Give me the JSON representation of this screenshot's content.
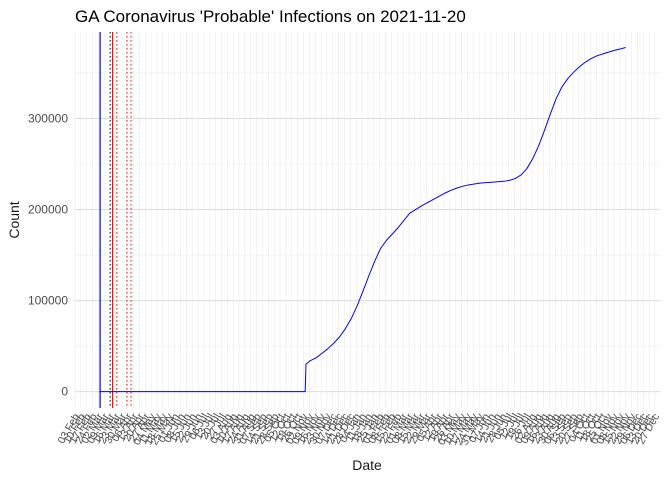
{
  "chart_data": {
    "type": "line",
    "title": "GA Coronavirus 'Probable' Infections on 2021-11-20",
    "xlabel": "Date",
    "ylabel": "Count",
    "x_range": [
      "2020-02-01",
      "2021-12-31"
    ],
    "ylim": [
      -18000,
      395000
    ],
    "y_ticks": [
      0,
      100000,
      200000,
      300000
    ],
    "y_tick_labels": [
      "0",
      "100000",
      "200000",
      "300000"
    ],
    "x_tick_labels": [
      "03 Feb",
      "10 Feb",
      "17 Feb",
      "24 Feb",
      "02 Mar",
      "09 Mar",
      "16 Mar",
      "23 Mar",
      "30 Mar",
      "06 Apr",
      "13 Apr",
      "20 Apr",
      "27 Apr",
      "04 May",
      "11 May",
      "18 May",
      "25 May",
      "01 Jun",
      "08 Jun",
      "15 Jun",
      "22 Jun",
      "29 Jun",
      "06 Jul",
      "13 Jul",
      "20 Jul",
      "27 Jul",
      "03 Aug",
      "10 Aug",
      "17 Aug",
      "24 Aug",
      "31 Aug",
      "07 Sep",
      "14 Sep",
      "21 Sep",
      "28 Sep",
      "05 Oct",
      "12 Oct",
      "19 Oct",
      "26 Oct",
      "02 Nov",
      "09 Nov",
      "16 Nov",
      "23 Nov",
      "30 Nov",
      "07 Dec",
      "14 Dec",
      "21 Dec",
      "28 Dec",
      "04 Jan",
      "11 Jan",
      "18 Jan",
      "25 Jan",
      "01 Feb",
      "08 Feb",
      "15 Feb",
      "22 Feb",
      "01 Mar",
      "08 Mar",
      "15 Mar",
      "22 Mar",
      "29 Mar",
      "05 Apr",
      "12 Apr",
      "19 Apr",
      "26 Apr",
      "03 May",
      "10 May",
      "17 May",
      "24 May",
      "31 May",
      "07 Jun",
      "14 Jun",
      "21 Jun",
      "28 Jun",
      "05 Jul",
      "12 Jul",
      "19 Jul",
      "26 Jul",
      "02 Aug",
      "09 Aug",
      "16 Aug",
      "23 Aug",
      "30 Aug",
      "06 Sep",
      "13 Sep",
      "20 Sep",
      "27 Sep",
      "04 Oct",
      "11 Oct",
      "18 Oct",
      "25 Oct",
      "01 Nov",
      "08 Nov",
      "15 Nov",
      "22 Nov",
      "29 Nov",
      "06 Dec",
      "13 Dec",
      "20 Dec",
      "27 Dec"
    ],
    "grid": true,
    "reference_lines": [
      {
        "x": "2020-03-02",
        "color": "#0000ff",
        "style": "solid"
      },
      {
        "x": "2020-03-14",
        "color": "#000000",
        "style": "dotted"
      },
      {
        "x": "2020-03-17",
        "color": "#ff0000",
        "style": "solid"
      },
      {
        "x": "2020-03-22",
        "color": "#ff0000",
        "style": "dotted"
      },
      {
        "x": "2020-04-03",
        "color": "#ff0000",
        "style": "dotted"
      },
      {
        "x": "2020-04-08",
        "color": "#ff0000",
        "style": "dotted"
      }
    ],
    "series": [
      {
        "color": "#0000ff",
        "points": [
          [
            "2020-03-01",
            0
          ],
          [
            "2020-11-02",
            0
          ],
          [
            "2020-11-03",
            30000
          ],
          [
            "2020-11-08",
            34000
          ],
          [
            "2020-11-15",
            37000
          ],
          [
            "2020-11-22",
            42000
          ],
          [
            "2020-11-29",
            47000
          ],
          [
            "2020-12-06",
            53000
          ],
          [
            "2020-12-13",
            60000
          ],
          [
            "2020-12-20",
            69000
          ],
          [
            "2020-12-27",
            80000
          ],
          [
            "2021-01-03",
            94000
          ],
          [
            "2021-01-10",
            110000
          ],
          [
            "2021-01-17",
            127000
          ],
          [
            "2021-01-24",
            143000
          ],
          [
            "2021-01-31",
            157000
          ],
          [
            "2021-02-07",
            166000
          ],
          [
            "2021-02-14",
            173000
          ],
          [
            "2021-02-21",
            180000
          ],
          [
            "2021-02-28",
            188000
          ],
          [
            "2021-03-07",
            196000
          ],
          [
            "2021-03-14",
            200000
          ],
          [
            "2021-03-21",
            204000
          ],
          [
            "2021-03-28",
            207500
          ],
          [
            "2021-04-04",
            211000
          ],
          [
            "2021-04-11",
            214500
          ],
          [
            "2021-04-18",
            218000
          ],
          [
            "2021-04-25",
            221000
          ],
          [
            "2021-05-02",
            223500
          ],
          [
            "2021-05-09",
            225500
          ],
          [
            "2021-05-16",
            227000
          ],
          [
            "2021-05-23",
            228000
          ],
          [
            "2021-05-30",
            229000
          ],
          [
            "2021-06-06",
            229500
          ],
          [
            "2021-06-13",
            230000
          ],
          [
            "2021-06-20",
            230500
          ],
          [
            "2021-06-27",
            231000
          ],
          [
            "2021-07-04",
            232000
          ],
          [
            "2021-07-11",
            234000
          ],
          [
            "2021-07-18",
            238000
          ],
          [
            "2021-07-25",
            245000
          ],
          [
            "2021-08-01",
            256000
          ],
          [
            "2021-08-08",
            270000
          ],
          [
            "2021-08-15",
            287000
          ],
          [
            "2021-08-22",
            305000
          ],
          [
            "2021-08-29",
            322000
          ],
          [
            "2021-09-05",
            335000
          ],
          [
            "2021-09-12",
            344000
          ],
          [
            "2021-09-19",
            351000
          ],
          [
            "2021-09-26",
            357000
          ],
          [
            "2021-10-03",
            362000
          ],
          [
            "2021-10-10",
            366000
          ],
          [
            "2021-10-17",
            369000
          ],
          [
            "2021-10-24",
            371000
          ],
          [
            "2021-10-31",
            373000
          ],
          [
            "2021-11-07",
            375000
          ],
          [
            "2021-11-14",
            376500
          ],
          [
            "2021-11-20",
            378000
          ]
        ]
      }
    ]
  }
}
